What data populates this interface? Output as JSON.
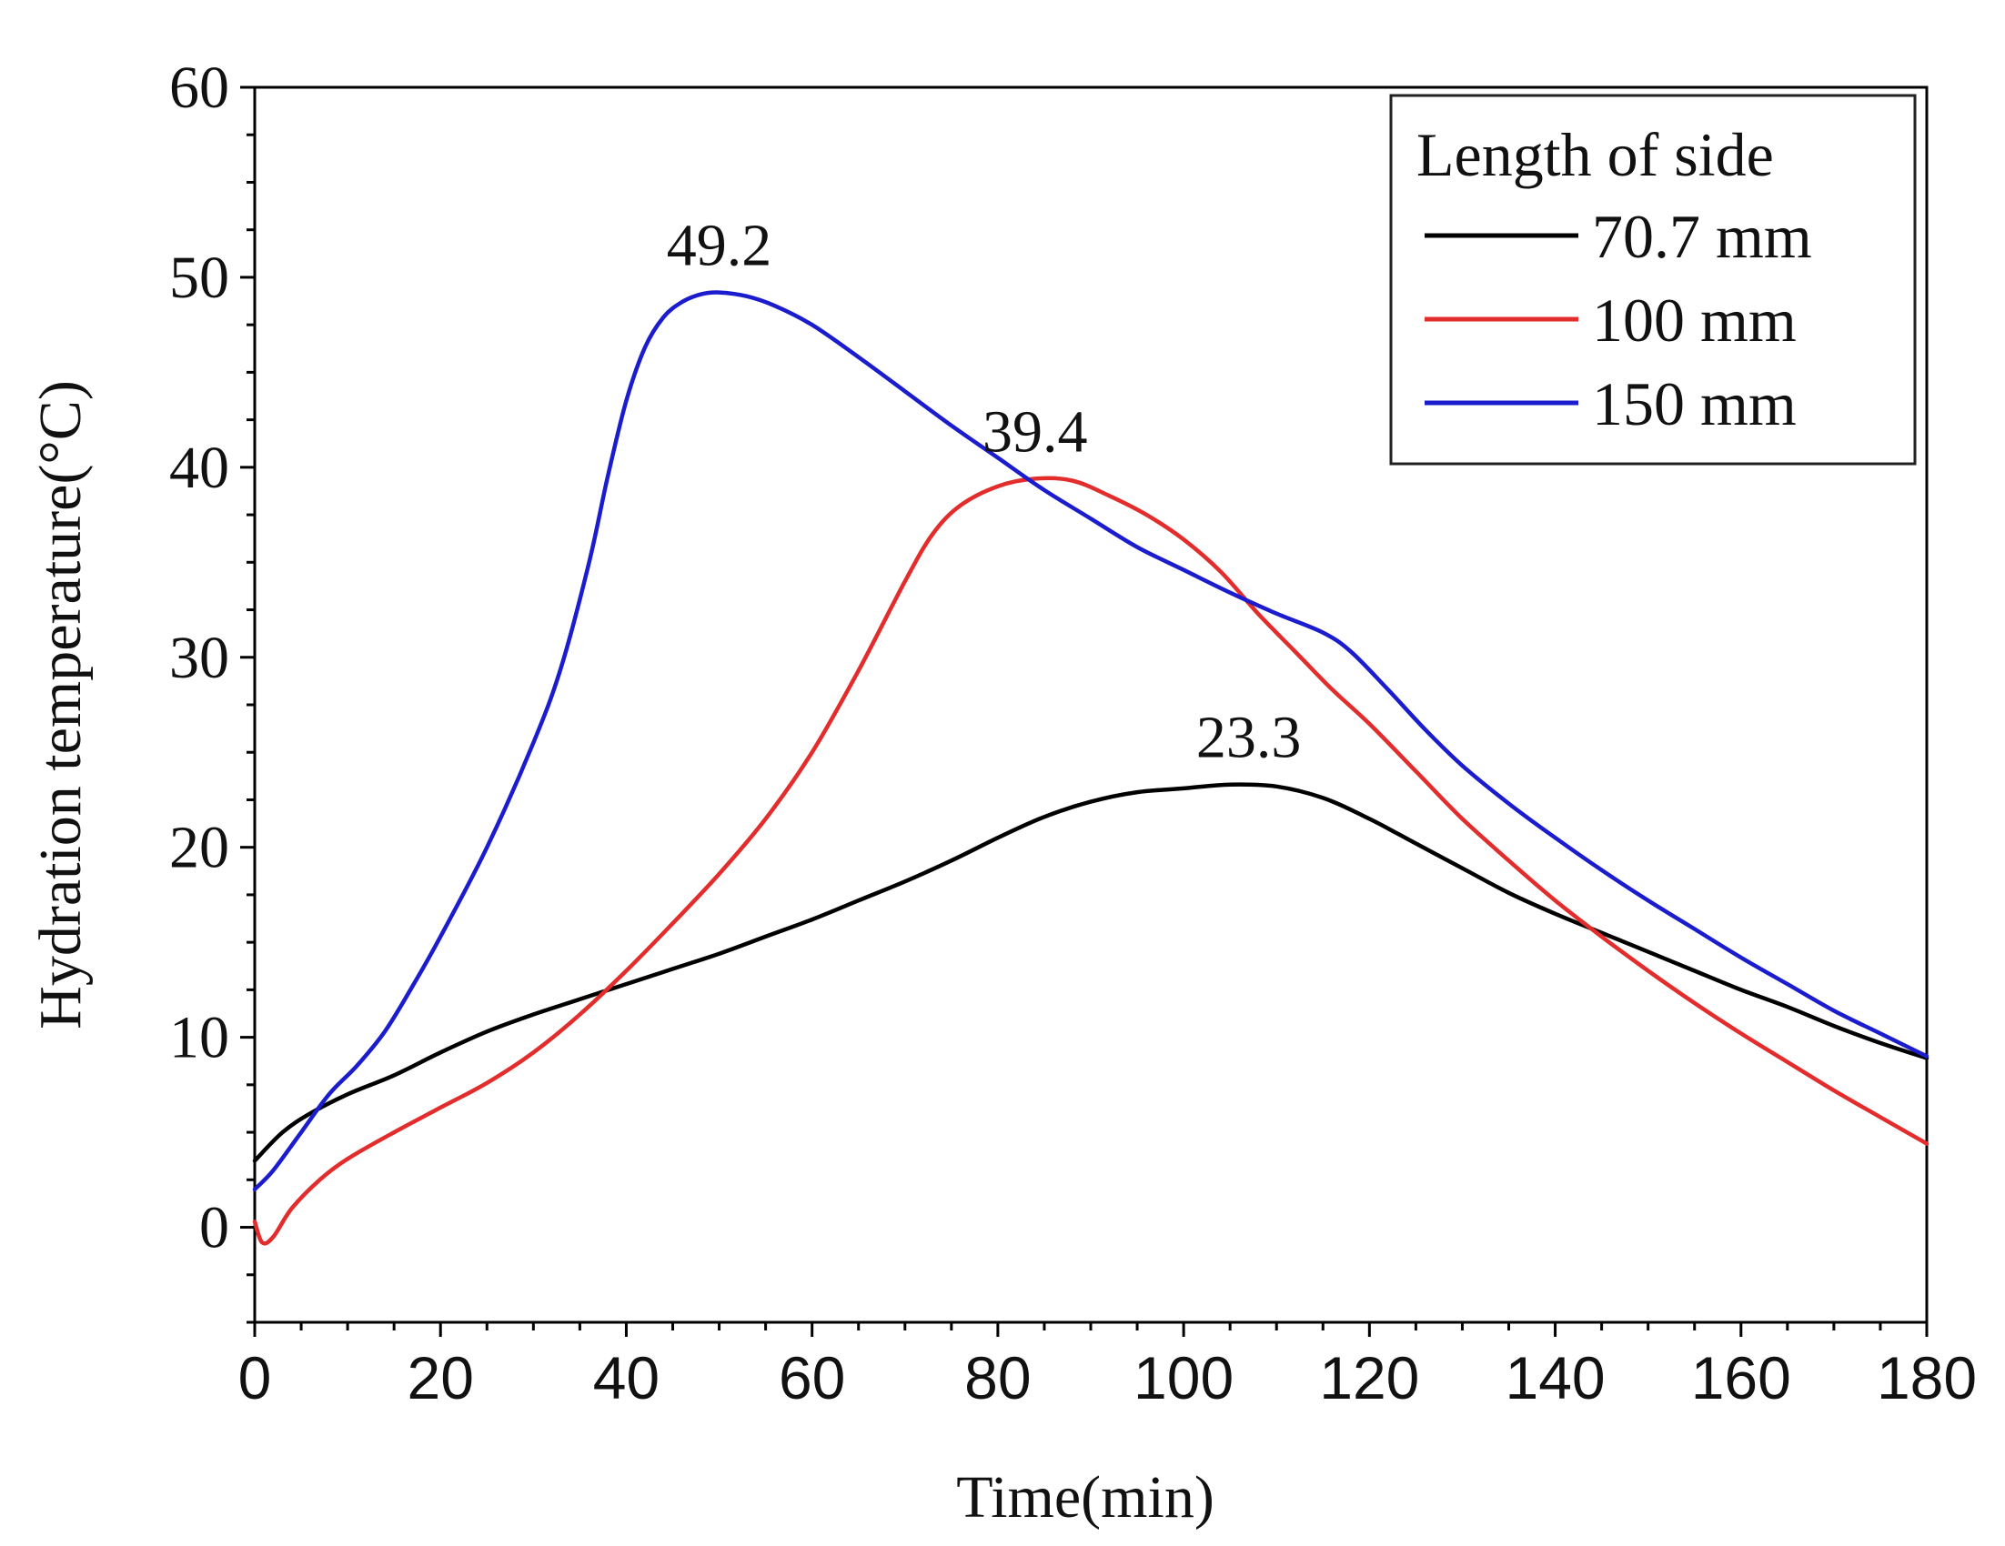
{
  "chart_data": {
    "type": "line",
    "title": "",
    "xlabel": "Time(min)",
    "ylabel": "Hydration temperature(°C)",
    "xlim": [
      0,
      180
    ],
    "ylim": [
      -5,
      60
    ],
    "xticks": [
      0,
      20,
      40,
      60,
      80,
      100,
      120,
      140,
      160,
      180
    ],
    "yticks": [
      0,
      10,
      20,
      30,
      40,
      50,
      60
    ],
    "x_minor_step": 5,
    "y_minor_step": 2.5,
    "grid": false,
    "legend": {
      "title": "Length of side",
      "placement": "top-right"
    },
    "series": [
      {
        "name": "70.7 mm",
        "color": "#000000",
        "points": [
          [
            0,
            3.5
          ],
          [
            3,
            5.0
          ],
          [
            6,
            6.0
          ],
          [
            10,
            7.0
          ],
          [
            15,
            8.0
          ],
          [
            20,
            9.2
          ],
          [
            25,
            10.3
          ],
          [
            30,
            11.2
          ],
          [
            35,
            12.0
          ],
          [
            40,
            12.8
          ],
          [
            45,
            13.6
          ],
          [
            50,
            14.4
          ],
          [
            55,
            15.3
          ],
          [
            60,
            16.2
          ],
          [
            65,
            17.2
          ],
          [
            70,
            18.2
          ],
          [
            75,
            19.3
          ],
          [
            80,
            20.5
          ],
          [
            85,
            21.6
          ],
          [
            90,
            22.4
          ],
          [
            95,
            22.9
          ],
          [
            100,
            23.1
          ],
          [
            105,
            23.3
          ],
          [
            110,
            23.2
          ],
          [
            115,
            22.6
          ],
          [
            120,
            21.5
          ],
          [
            125,
            20.2
          ],
          [
            130,
            18.9
          ],
          [
            135,
            17.6
          ],
          [
            140,
            16.5
          ],
          [
            145,
            15.5
          ],
          [
            150,
            14.5
          ],
          [
            155,
            13.5
          ],
          [
            160,
            12.5
          ],
          [
            165,
            11.6
          ],
          [
            170,
            10.6
          ],
          [
            175,
            9.7
          ],
          [
            180,
            8.9
          ]
        ]
      },
      {
        "name": "100 mm",
        "color": "#e32c2c",
        "points": [
          [
            0,
            0.3
          ],
          [
            0.8,
            -0.8
          ],
          [
            2,
            -0.5
          ],
          [
            4,
            1.0
          ],
          [
            7,
            2.5
          ],
          [
            10,
            3.6
          ],
          [
            15,
            5.0
          ],
          [
            20,
            6.3
          ],
          [
            25,
            7.6
          ],
          [
            30,
            9.2
          ],
          [
            35,
            11.2
          ],
          [
            40,
            13.5
          ],
          [
            45,
            16.0
          ],
          [
            50,
            18.6
          ],
          [
            55,
            21.5
          ],
          [
            60,
            25.0
          ],
          [
            65,
            29.3
          ],
          [
            70,
            34.0
          ],
          [
            73,
            36.5
          ],
          [
            76,
            38.0
          ],
          [
            80,
            39.0
          ],
          [
            84,
            39.4
          ],
          [
            88,
            39.3
          ],
          [
            92,
            38.5
          ],
          [
            96,
            37.5
          ],
          [
            100,
            36.2
          ],
          [
            104,
            34.5
          ],
          [
            108,
            32.3
          ],
          [
            112,
            30.3
          ],
          [
            116,
            28.3
          ],
          [
            120,
            26.5
          ],
          [
            125,
            24.0
          ],
          [
            130,
            21.5
          ],
          [
            135,
            19.3
          ],
          [
            140,
            17.2
          ],
          [
            145,
            15.3
          ],
          [
            150,
            13.5
          ],
          [
            155,
            11.8
          ],
          [
            160,
            10.2
          ],
          [
            165,
            8.7
          ],
          [
            170,
            7.2
          ],
          [
            175,
            5.8
          ],
          [
            180,
            4.4
          ]
        ]
      },
      {
        "name": "150 mm",
        "color": "#1c1ccf",
        "points": [
          [
            0,
            2.0
          ],
          [
            2,
            3.0
          ],
          [
            5,
            5.0
          ],
          [
            8,
            7.0
          ],
          [
            11,
            8.5
          ],
          [
            14,
            10.3
          ],
          [
            17,
            12.7
          ],
          [
            20,
            15.3
          ],
          [
            25,
            20.0
          ],
          [
            30,
            25.5
          ],
          [
            33,
            29.5
          ],
          [
            36,
            35.0
          ],
          [
            38,
            39.5
          ],
          [
            40,
            43.5
          ],
          [
            42,
            46.3
          ],
          [
            44,
            47.9
          ],
          [
            46,
            48.7
          ],
          [
            48,
            49.1
          ],
          [
            50,
            49.2
          ],
          [
            53,
            49.0
          ],
          [
            56,
            48.5
          ],
          [
            60,
            47.5
          ],
          [
            65,
            45.8
          ],
          [
            70,
            44.0
          ],
          [
            75,
            42.2
          ],
          [
            80,
            40.5
          ],
          [
            85,
            38.8
          ],
          [
            90,
            37.3
          ],
          [
            95,
            35.8
          ],
          [
            100,
            34.6
          ],
          [
            105,
            33.4
          ],
          [
            110,
            32.3
          ],
          [
            115,
            31.3
          ],
          [
            118,
            30.3
          ],
          [
            122,
            28.3
          ],
          [
            126,
            26.2
          ],
          [
            130,
            24.3
          ],
          [
            135,
            22.3
          ],
          [
            140,
            20.5
          ],
          [
            145,
            18.8
          ],
          [
            150,
            17.2
          ],
          [
            155,
            15.7
          ],
          [
            160,
            14.2
          ],
          [
            165,
            12.8
          ],
          [
            170,
            11.4
          ],
          [
            175,
            10.2
          ],
          [
            180,
            9.0
          ]
        ]
      }
    ],
    "annotations": [
      {
        "text": "49.2",
        "x": 50,
        "y": 49.2
      },
      {
        "text": "39.4",
        "x": 84,
        "y": 39.4
      },
      {
        "text": "23.3",
        "x": 107,
        "y": 23.3
      }
    ]
  }
}
